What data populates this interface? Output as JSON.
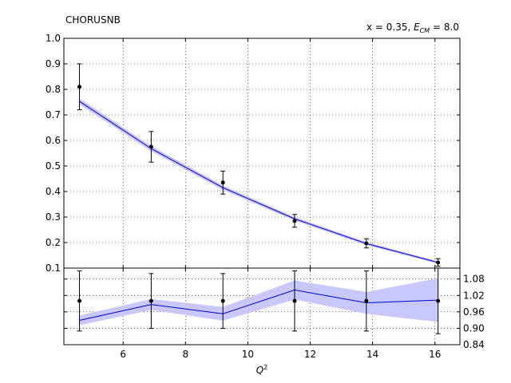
{
  "chart_data": [
    {
      "type": "scatter",
      "panel": "main",
      "title_left": "CHORUSNB",
      "title_right": "x = 0.35, ",
      "title_right_math_base": "E",
      "title_right_math_sub": "CM",
      "title_right_suffix": " = 8.0",
      "xlabel_base": "Q",
      "xlabel_sup": "2",
      "xlim": [
        4.1,
        16.8
      ],
      "ylim": [
        0.1,
        1.0
      ],
      "xticks": [
        6,
        8,
        10,
        12,
        14,
        16
      ],
      "yticks": [
        "0.1",
        "0.2",
        "0.3",
        "0.4",
        "0.5",
        "0.6",
        "0.7",
        "0.8",
        "0.9",
        "1.0"
      ],
      "grid": true,
      "colors": {
        "data": "#000000",
        "theory_line": "#0000cc",
        "theory_band": "#c8c8ff"
      },
      "data_points": [
        {
          "x": 4.6,
          "y": 0.81,
          "err": 0.09
        },
        {
          "x": 6.9,
          "y": 0.575,
          "err": 0.06
        },
        {
          "x": 9.2,
          "y": 0.435,
          "err": 0.045
        },
        {
          "x": 11.5,
          "y": 0.285,
          "err": 0.025
        },
        {
          "x": 13.8,
          "y": 0.197,
          "err": 0.018
        },
        {
          "x": 16.1,
          "y": 0.122,
          "err": 0.015
        }
      ],
      "theory": [
        {
          "x": 4.6,
          "y": 0.753,
          "band": 0.012
        },
        {
          "x": 6.9,
          "y": 0.568,
          "band": 0.01
        },
        {
          "x": 9.2,
          "y": 0.415,
          "band": 0.009
        },
        {
          "x": 11.5,
          "y": 0.293,
          "band": 0.007
        },
        {
          "x": 13.8,
          "y": 0.196,
          "band": 0.006
        },
        {
          "x": 16.1,
          "y": 0.122,
          "band": 0.005
        }
      ]
    },
    {
      "type": "scatter",
      "panel": "ratio",
      "xlim": [
        4.1,
        16.8
      ],
      "ylim": [
        0.84,
        1.12
      ],
      "xticks": [
        6,
        8,
        10,
        12,
        14,
        16
      ],
      "yticks": [
        "0.84",
        "0.90",
        "0.96",
        "1.02",
        "1.08"
      ],
      "grid": true,
      "data_points": [
        {
          "x": 4.6,
          "y": 1.0,
          "err": 0.11
        },
        {
          "x": 6.9,
          "y": 1.0,
          "err": 0.1
        },
        {
          "x": 9.2,
          "y": 1.0,
          "err": 0.1
        },
        {
          "x": 11.5,
          "y": 1.0,
          "err": 0.11
        },
        {
          "x": 13.8,
          "y": 1.0,
          "err": 0.11
        },
        {
          "x": 16.1,
          "y": 1.0,
          "err": 0.12
        }
      ],
      "theory": [
        {
          "x": 4.6,
          "y": 0.929,
          "band": 0.018
        },
        {
          "x": 6.9,
          "y": 0.987,
          "band": 0.02
        },
        {
          "x": 9.2,
          "y": 0.953,
          "band": 0.025
        },
        {
          "x": 11.5,
          "y": 1.04,
          "band": 0.035
        },
        {
          "x": 13.8,
          "y": 0.993,
          "band": 0.04
        },
        {
          "x": 16.1,
          "y": 1.003,
          "band": 0.08
        }
      ]
    }
  ]
}
